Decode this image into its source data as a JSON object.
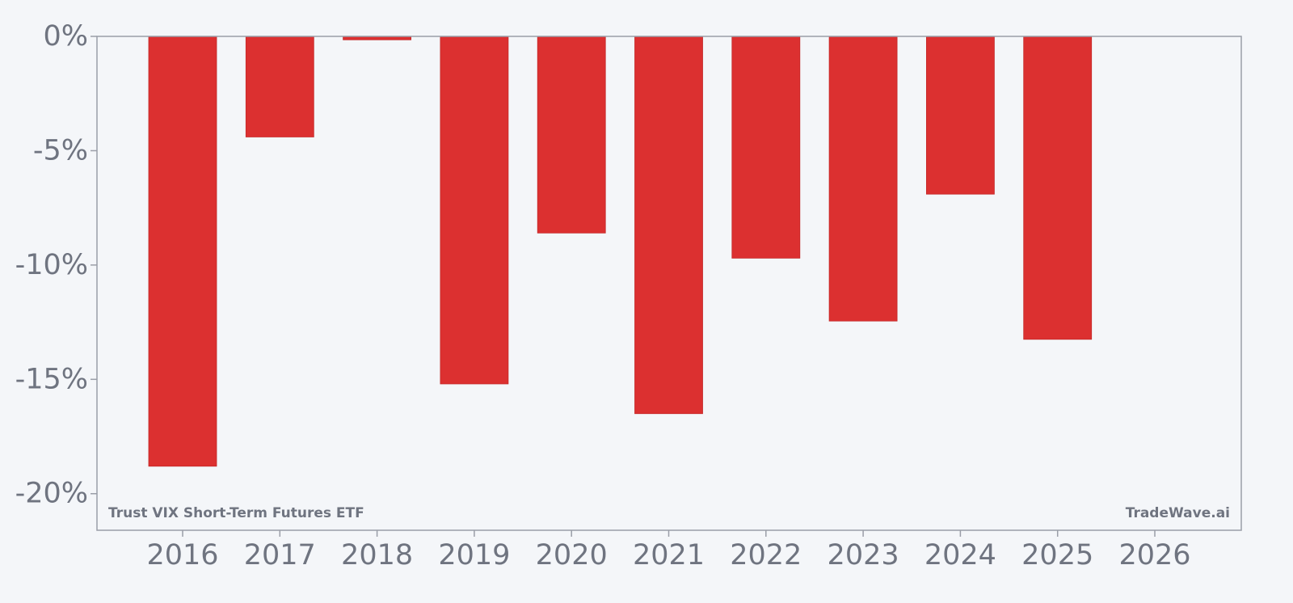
{
  "chart_data": {
    "type": "bar",
    "categories": [
      "2016",
      "2017",
      "2018",
      "2019",
      "2020",
      "2021",
      "2022",
      "2023",
      "2024",
      "2025",
      "2026"
    ],
    "values": [
      -18.8,
      -4.4,
      -0.15,
      -15.2,
      -8.6,
      -16.5,
      -9.7,
      -12.45,
      -6.9,
      -13.25,
      null
    ],
    "x_ticks": [
      "2016",
      "2017",
      "2018",
      "2019",
      "2020",
      "2021",
      "2022",
      "2023",
      "2024",
      "2025",
      "2026"
    ],
    "y_ticks": [
      0,
      -5,
      -10,
      -15,
      -20
    ],
    "y_tick_labels": [
      "0%",
      "-5%",
      "-10%",
      "-15%",
      "-20%"
    ],
    "ylim": [
      -21.6,
      0
    ],
    "grid": false,
    "bar_color": "#dc3030",
    "axis_color": "#9a9ea8",
    "text_color": "#6f7480",
    "annotations": {
      "bottom_left": "Trust VIX Short-Term Futures ETF",
      "bottom_right": "TradeWave.ai"
    }
  }
}
